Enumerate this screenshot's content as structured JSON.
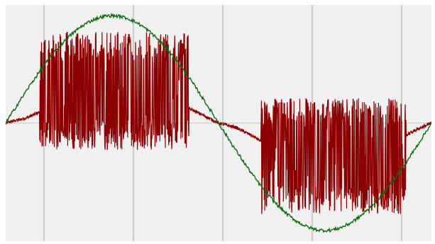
{
  "chart_data": {
    "type": "line",
    "title": "",
    "xlabel": "",
    "ylabel": "",
    "grid": {
      "vertical": true,
      "horizontal_zero_line": true
    },
    "xlim": [
      0,
      1
    ],
    "ylim": [
      -1.1,
      1.1
    ],
    "x_gridlines": [
      0.09,
      0.3,
      0.51,
      0.72,
      0.93
    ],
    "series": [
      {
        "color": "#0b6b0b",
        "shape": "sine",
        "amplitude": 1.0,
        "frequency_cycles": 1,
        "phase": 0,
        "noise_amplitude": 0.015
      },
      {
        "color": "#8b0000",
        "shape": "noisy bursts",
        "baseline": [
          [
            0.0,
            0.0
          ],
          [
            0.05,
            0.05
          ],
          [
            0.09,
            0.12
          ],
          [
            0.13,
            0.18
          ],
          [
            0.2,
            0.28
          ],
          [
            0.27,
            0.3
          ],
          [
            0.34,
            0.25
          ],
          [
            0.4,
            0.18
          ],
          [
            0.44,
            0.12
          ],
          [
            0.47,
            0.06
          ],
          [
            0.5,
            0.0
          ],
          [
            0.54,
            -0.04
          ],
          [
            0.58,
            -0.12
          ],
          [
            0.62,
            -0.22
          ],
          [
            0.68,
            -0.28
          ],
          [
            0.75,
            -0.3
          ],
          [
            0.82,
            -0.27
          ],
          [
            0.88,
            -0.22
          ],
          [
            0.92,
            -0.16
          ],
          [
            0.96,
            -0.07
          ],
          [
            1.0,
            0.0
          ]
        ],
        "bursts": [
          {
            "x_range": [
              0.08,
              0.43
            ],
            "y_range": [
              -0.25,
              0.85
            ]
          },
          {
            "x_range": [
              0.6,
              0.94
            ],
            "y_range": [
              -0.85,
              0.23
            ]
          }
        ]
      }
    ]
  }
}
